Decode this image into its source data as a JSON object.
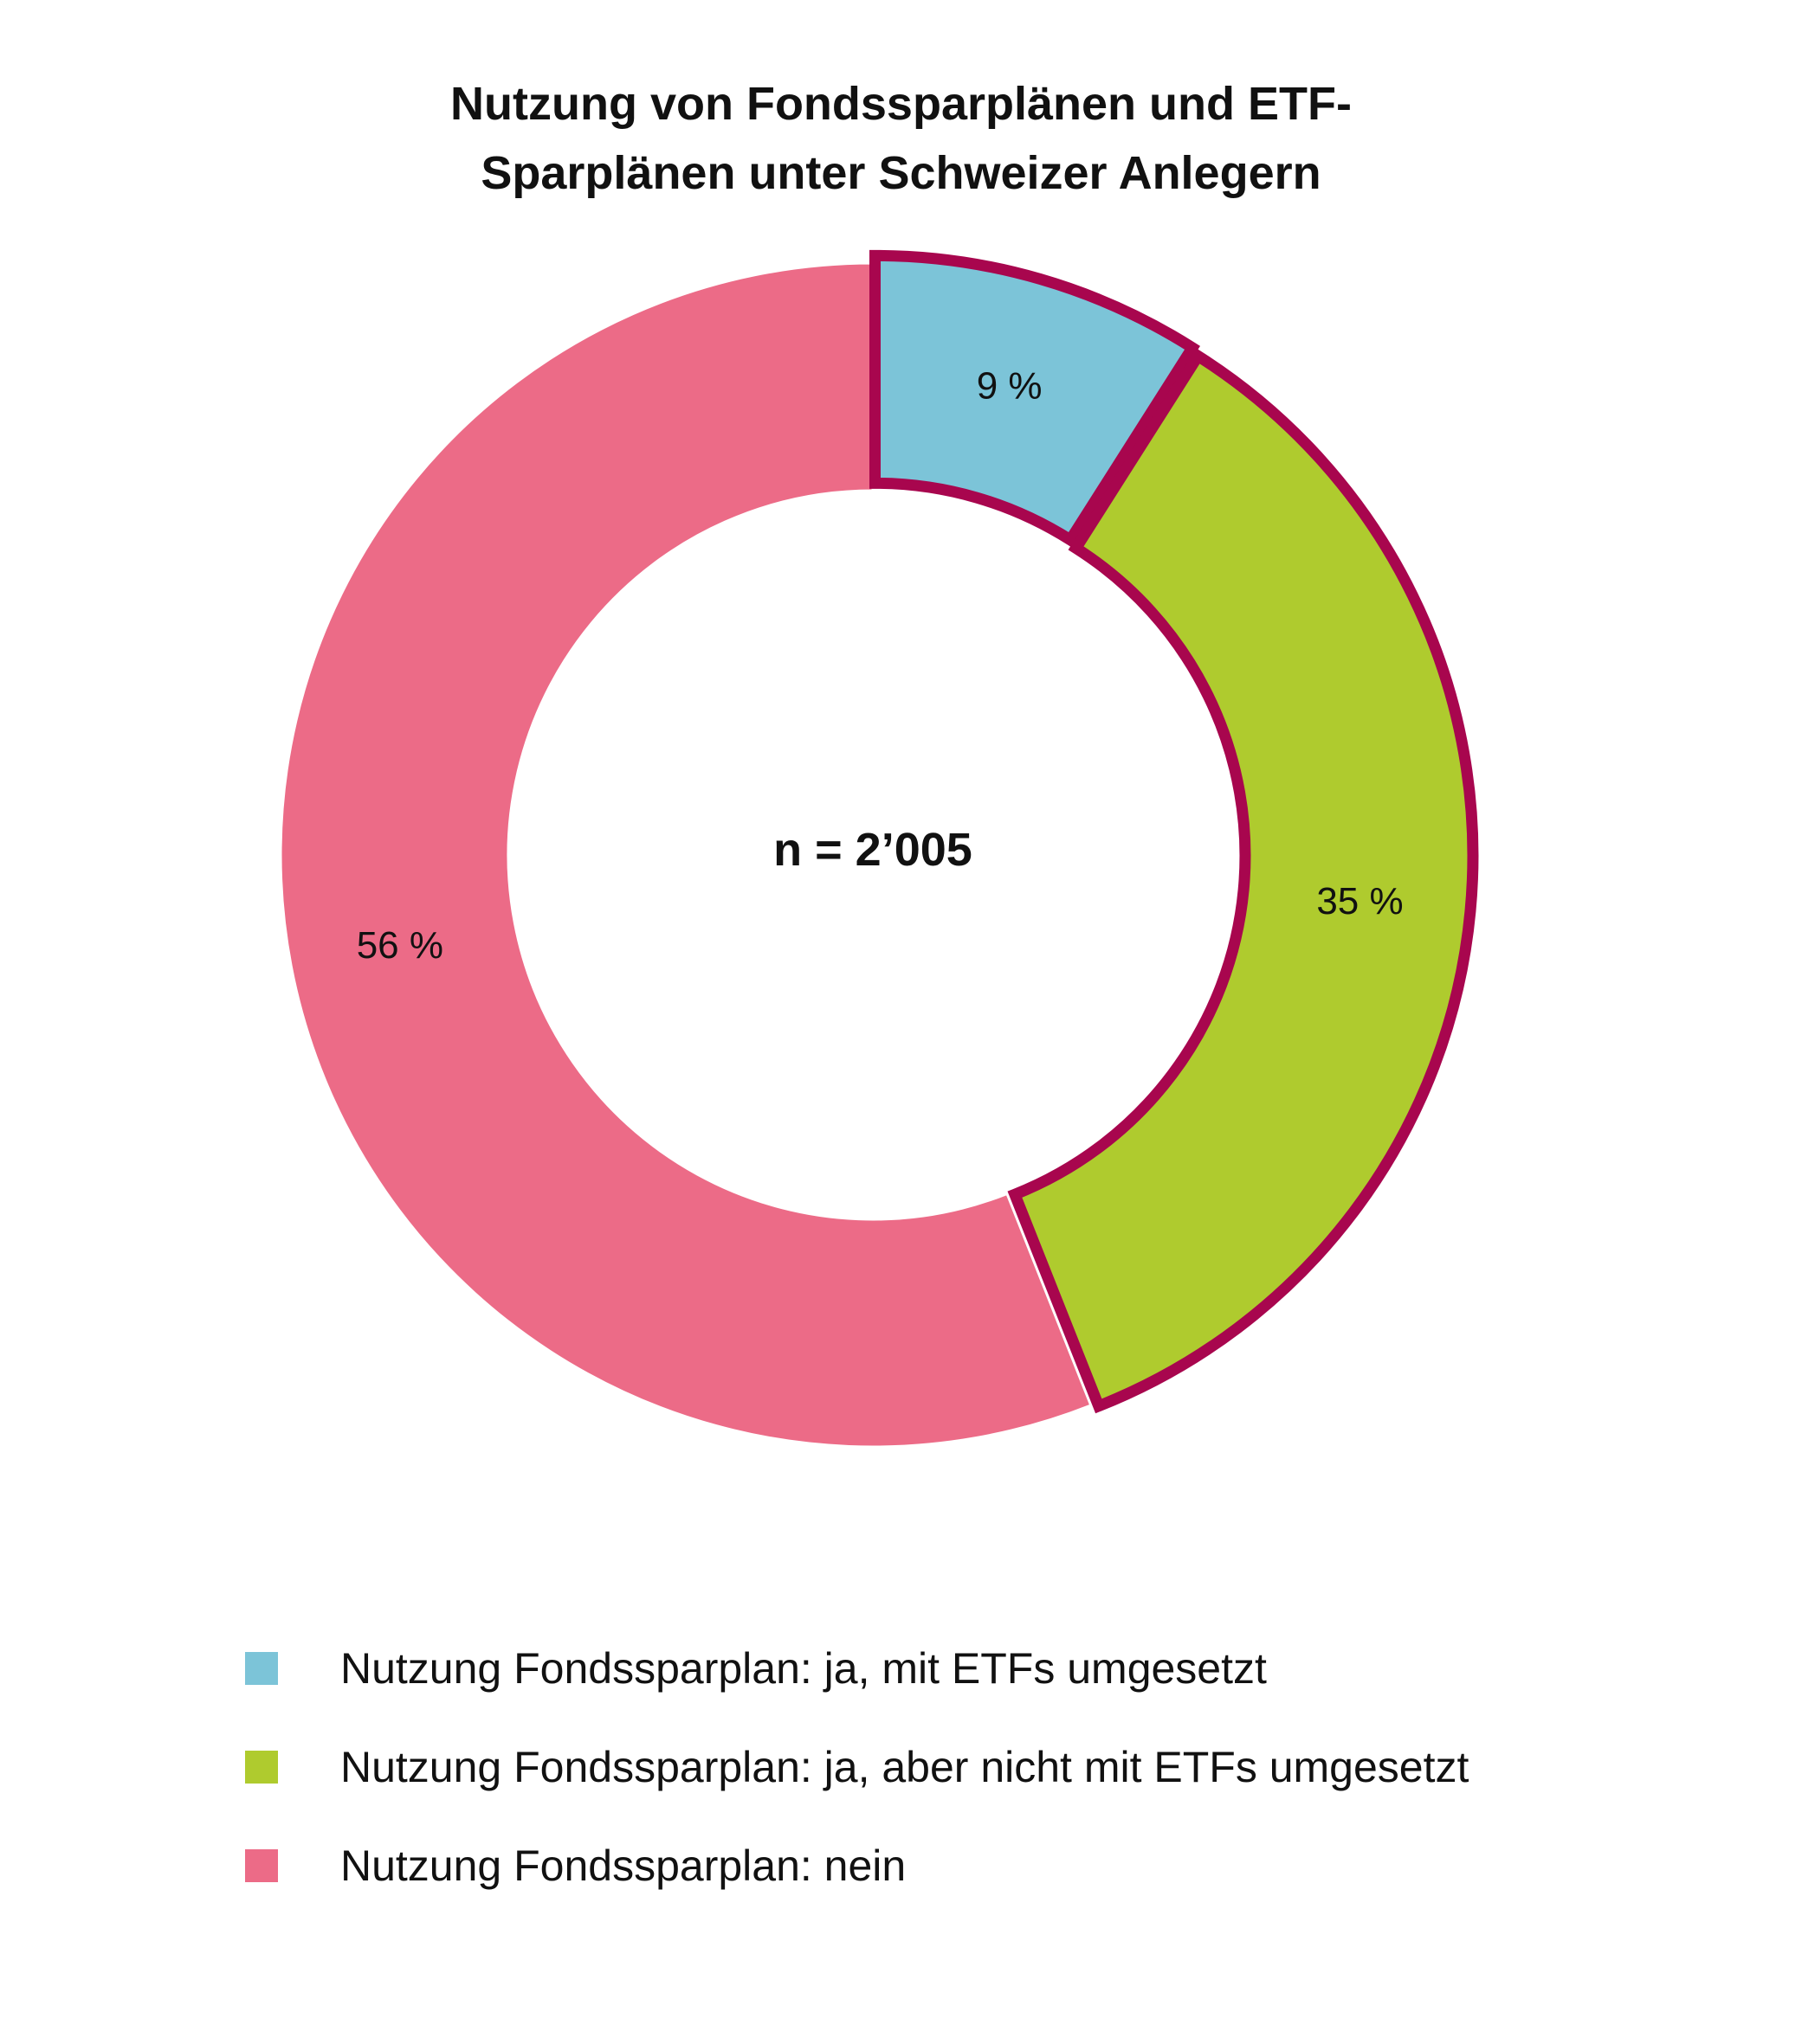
{
  "chart_data": {
    "type": "pie",
    "variant": "donut",
    "title_lines": [
      "Nutzung von Fondssparplänen und ETF-",
      "Sparplänen unter Schweizer Anlegern"
    ],
    "center_label": "n = 2’005",
    "slices": [
      {
        "name": "Nutzung Fondssparplan: ja, mit ETFs umgesetzt",
        "value": 9,
        "label": "9 %",
        "color": "#7CC4D8",
        "highlighted": true
      },
      {
        "name": "Nutzung Fondssparplan: ja, aber nicht mit ETFs umgesetzt",
        "value": 35,
        "label": "35 %",
        "color": "#AFCB2E",
        "highlighted": true
      },
      {
        "name": "Nutzung Fondssparplan: nein",
        "value": 56,
        "label": "56 %",
        "color": "#EC6B87",
        "highlighted": false
      }
    ],
    "highlight_border_color": "#A8064E",
    "start_angle": "12 o'clock",
    "direction": "clockwise",
    "legend_position": "bottom-left"
  }
}
